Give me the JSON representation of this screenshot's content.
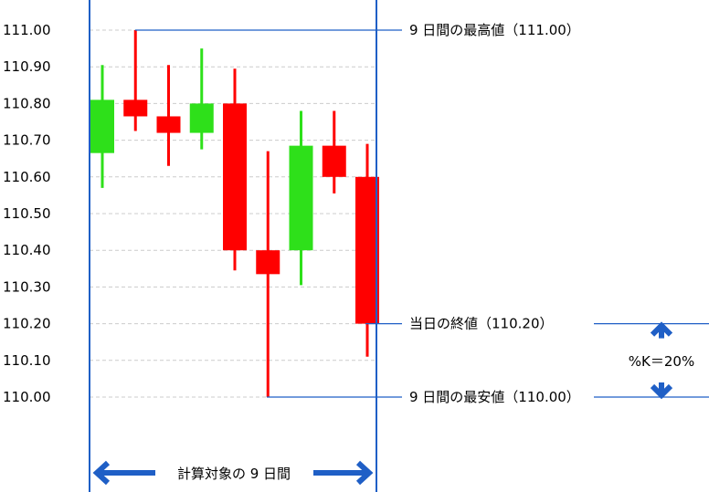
{
  "chart_data": {
    "type": "candlestick",
    "y_ticks": [
      "111.00",
      "110.90",
      "110.80",
      "110.70",
      "110.60",
      "110.50",
      "110.40",
      "110.30",
      "110.20",
      "110.10",
      "110.00"
    ],
    "ylim": [
      110.0,
      111.0
    ],
    "grid": true,
    "colors": {
      "up": "#2ee01a",
      "down": "#ff0000",
      "annotation": "#1f5fc6"
    },
    "candles": [
      {
        "direction": "up",
        "open": 110.665,
        "close": 110.81,
        "high": 110.905,
        "low": 110.57
      },
      {
        "direction": "down",
        "open": 110.81,
        "close": 110.765,
        "high": 111.0,
        "low": 110.725
      },
      {
        "direction": "down",
        "open": 110.765,
        "close": 110.72,
        "high": 110.905,
        "low": 110.63
      },
      {
        "direction": "up",
        "open": 110.72,
        "close": 110.8,
        "high": 110.95,
        "low": 110.675
      },
      {
        "direction": "down",
        "open": 110.8,
        "close": 110.4,
        "high": 110.895,
        "low": 110.345
      },
      {
        "direction": "down",
        "open": 110.4,
        "close": 110.335,
        "high": 110.67,
        "low": 110.0
      },
      {
        "direction": "up",
        "open": 110.4,
        "close": 110.685,
        "high": 110.78,
        "low": 110.305
      },
      {
        "direction": "down",
        "open": 110.685,
        "close": 110.6,
        "high": 110.78,
        "low": 110.555
      },
      {
        "direction": "down",
        "open": 110.6,
        "close": 110.2,
        "high": 110.69,
        "low": 110.11
      }
    ],
    "annotations": {
      "high_label": "9 日間の最高値（111.00）",
      "close_label": "当日の終値（110.20）",
      "low_label": "9 日間の最安値（110.00）",
      "k_label": "%K＝20%",
      "period_label": "計算対象の 9 日間",
      "high_value": 111.0,
      "close_value": 110.2,
      "low_value": 110.0
    }
  }
}
